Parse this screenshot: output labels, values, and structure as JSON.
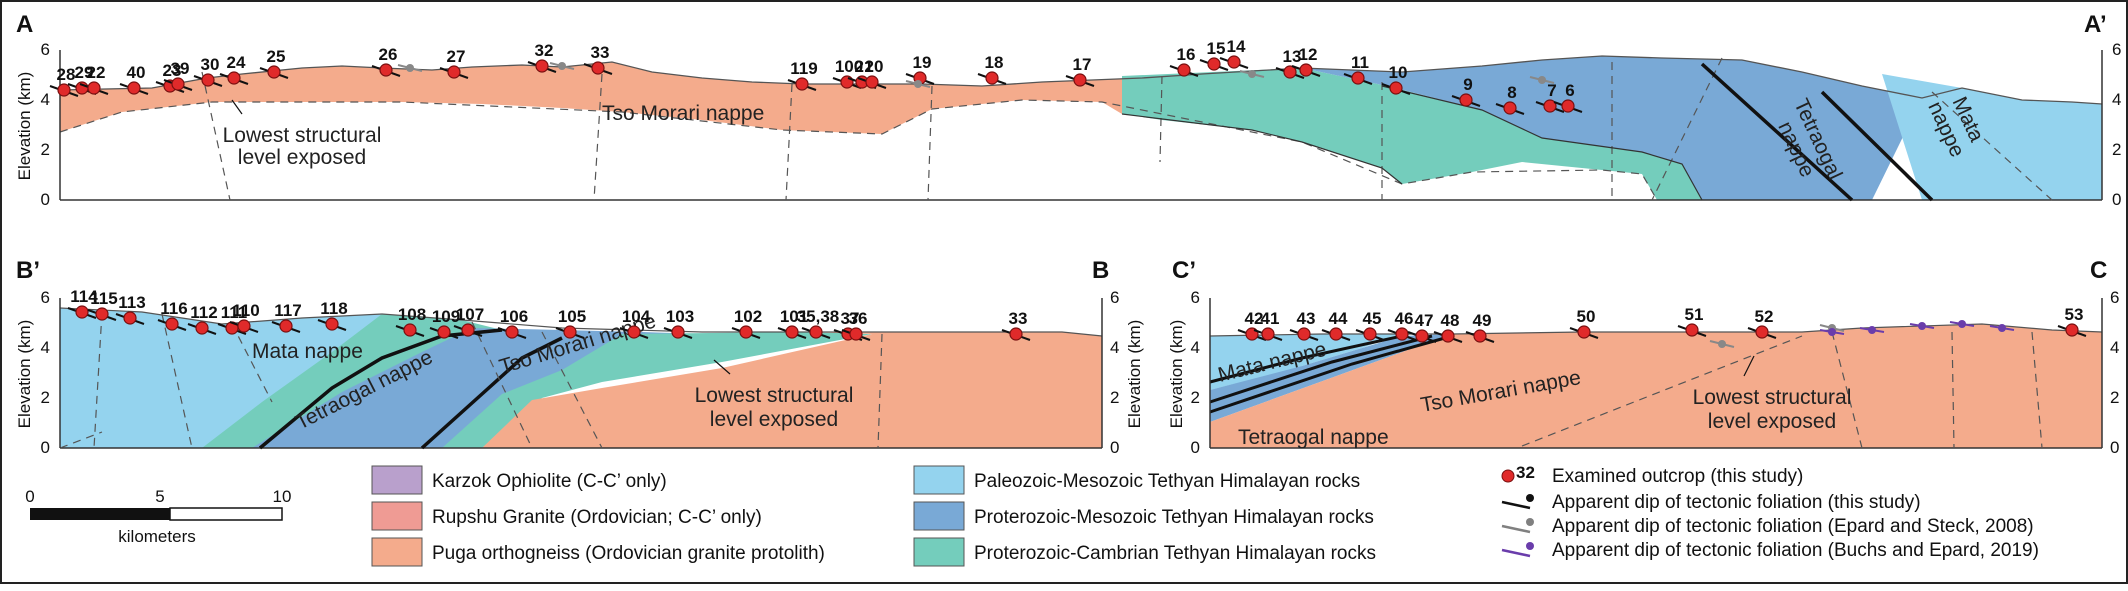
{
  "sections": {
    "top": {
      "left": "A",
      "right": "A’",
      "y_axis_label": "Elevation (km)",
      "ticks": [
        "0",
        "2",
        "4",
        "6"
      ],
      "outcrops": [
        "28",
        "29",
        "22",
        "40",
        "23",
        "39",
        "30",
        "24",
        "25",
        "26",
        "27",
        "32",
        "33",
        "119",
        "100",
        "21",
        "20",
        "19",
        "18",
        "17",
        "16",
        "15",
        "14",
        "13",
        "12",
        "11",
        "10",
        "9",
        "8",
        "7",
        "6"
      ],
      "labels": {
        "tso": "Tso Morari nappe",
        "lowest": "Lowest structural\nlevel exposed",
        "tetraogal": "Tetraogal\nnappe",
        "mata": "Mata\nnappe"
      }
    },
    "bottom_left": {
      "left": "B’",
      "right": "B",
      "y_axis_label": "Elevation (km)",
      "ticks": [
        "0",
        "2",
        "4",
        "6"
      ],
      "outcrops": [
        "114",
        "115",
        "113",
        "116",
        "112",
        "111",
        "110",
        "117",
        "118",
        "108",
        "109",
        "107",
        "106",
        "105",
        "104",
        "103",
        "102",
        "101",
        "35,38",
        "37",
        "36",
        "33"
      ],
      "labels": {
        "mata": "Mata nappe",
        "tso": "Tso Morari nappe",
        "tetraogal": "Tetraogal nappe",
        "lowest": "Lowest structural\nlevel exposed"
      }
    },
    "bottom_right": {
      "left": "C’",
      "right": "C",
      "y_axis_label": "Elevation (km)",
      "ticks": [
        "0",
        "2",
        "4",
        "6"
      ],
      "outcrops": [
        "42",
        "41",
        "43",
        "44",
        "45",
        "46",
        "47",
        "48",
        "49",
        "50",
        "51",
        "52",
        "53"
      ],
      "labels": {
        "mata": "Mata nappe",
        "tso": "Tso Morari nappe",
        "tetraogal": "Tetraogal nappe",
        "lowest": "Lowest structural\nlevel exposed"
      }
    }
  },
  "scale": {
    "ticks": [
      "0",
      "5",
      "10"
    ],
    "unit": "kilometers"
  },
  "legend": {
    "units": [
      {
        "label": "Karzok Ophiolite (C-C’ only)",
        "color": "#b9a0cc"
      },
      {
        "label": "Rupshu Granite (Ordovician; C-C’ only)",
        "color": "#ef9b94"
      },
      {
        "label": "Puga orthogneiss (Ordovician granite protolith)",
        "color": "#f4ab8c"
      },
      {
        "label": "Paleozoic-Mesozoic Tethyan Himalayan rocks",
        "color": "#94d3ee"
      },
      {
        "label": "Proterozoic-Mesozoic Tethyan Himalayan rocks",
        "color": "#79a9d6"
      },
      {
        "label": "Proterozoic-Cambrian Tethyan Himalayan rocks",
        "color": "#74cdbc"
      }
    ],
    "symbols": [
      {
        "number": "32",
        "label": "Examined outcrop (this study)"
      },
      {
        "label": "Apparent dip of tectonic foliation (this study)",
        "color": "#111111"
      },
      {
        "label": "Apparent dip of tectonic foliation (Epard and Steck, 2008)",
        "color": "#808080"
      },
      {
        "label": "Apparent dip of tectonic foliation (Buchs and Epard, 2019)",
        "color": "#6a3dab"
      }
    ]
  }
}
